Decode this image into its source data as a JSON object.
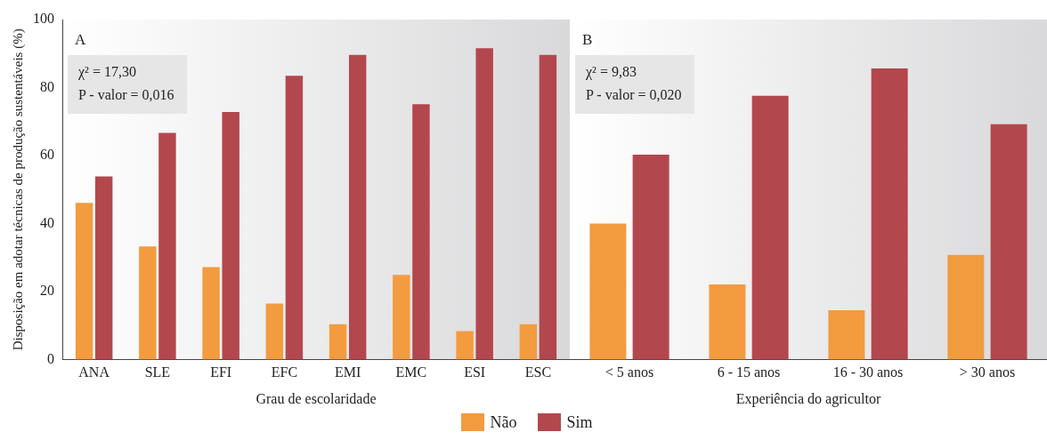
{
  "chart_data": [
    {
      "type": "bar",
      "categories": [
        "ANA",
        "SLE",
        "EFI",
        "EFC",
        "EMI",
        "EMC",
        "ESI",
        "ESC"
      ],
      "xlabel": "Grau de escolaridade",
      "ylabel": "Disposição em adotar técnicas de produção sustentáveis (%)",
      "ylim": [
        0,
        100
      ],
      "yticks": [
        0,
        20,
        40,
        60,
        80,
        100
      ],
      "legend": "bottom",
      "annotations": [
        "A",
        "χ² = 17,30",
        "P - valor = 0,016"
      ],
      "series": [
        {
          "name": "Não",
          "color": "#f39b3f",
          "values": [
            46.1,
            33.3,
            27.2,
            16.5,
            10.4,
            24.9,
            8.4,
            10.4
          ]
        },
        {
          "name": "Sim",
          "color": "#b3474e",
          "values": [
            53.9,
            66.7,
            72.8,
            83.5,
            89.6,
            75.1,
            91.6,
            89.6
          ]
        }
      ]
    },
    {
      "type": "bar",
      "categories": [
        "< 5 anos",
        "6 - 15 anos",
        "16 - 30 anos",
        "> 30 anos"
      ],
      "xlabel": "Experiência do agricultor",
      "ylim": [
        0,
        100
      ],
      "yticks": [
        0,
        20,
        40,
        60,
        80,
        100
      ],
      "tick_labels": "x",
      "annotations": [
        "B",
        "χ² = 9,83",
        "P - valor = 0,020"
      ],
      "series": [
        {
          "color": "#f39b3f",
          "values": [
            40.0,
            22.1,
            14.5,
            30.8
          ]
        },
        {
          "color": "#b3474e",
          "values": [
            60.3,
            77.6,
            85.6,
            69.2
          ]
        }
      ]
    }
  ]
}
